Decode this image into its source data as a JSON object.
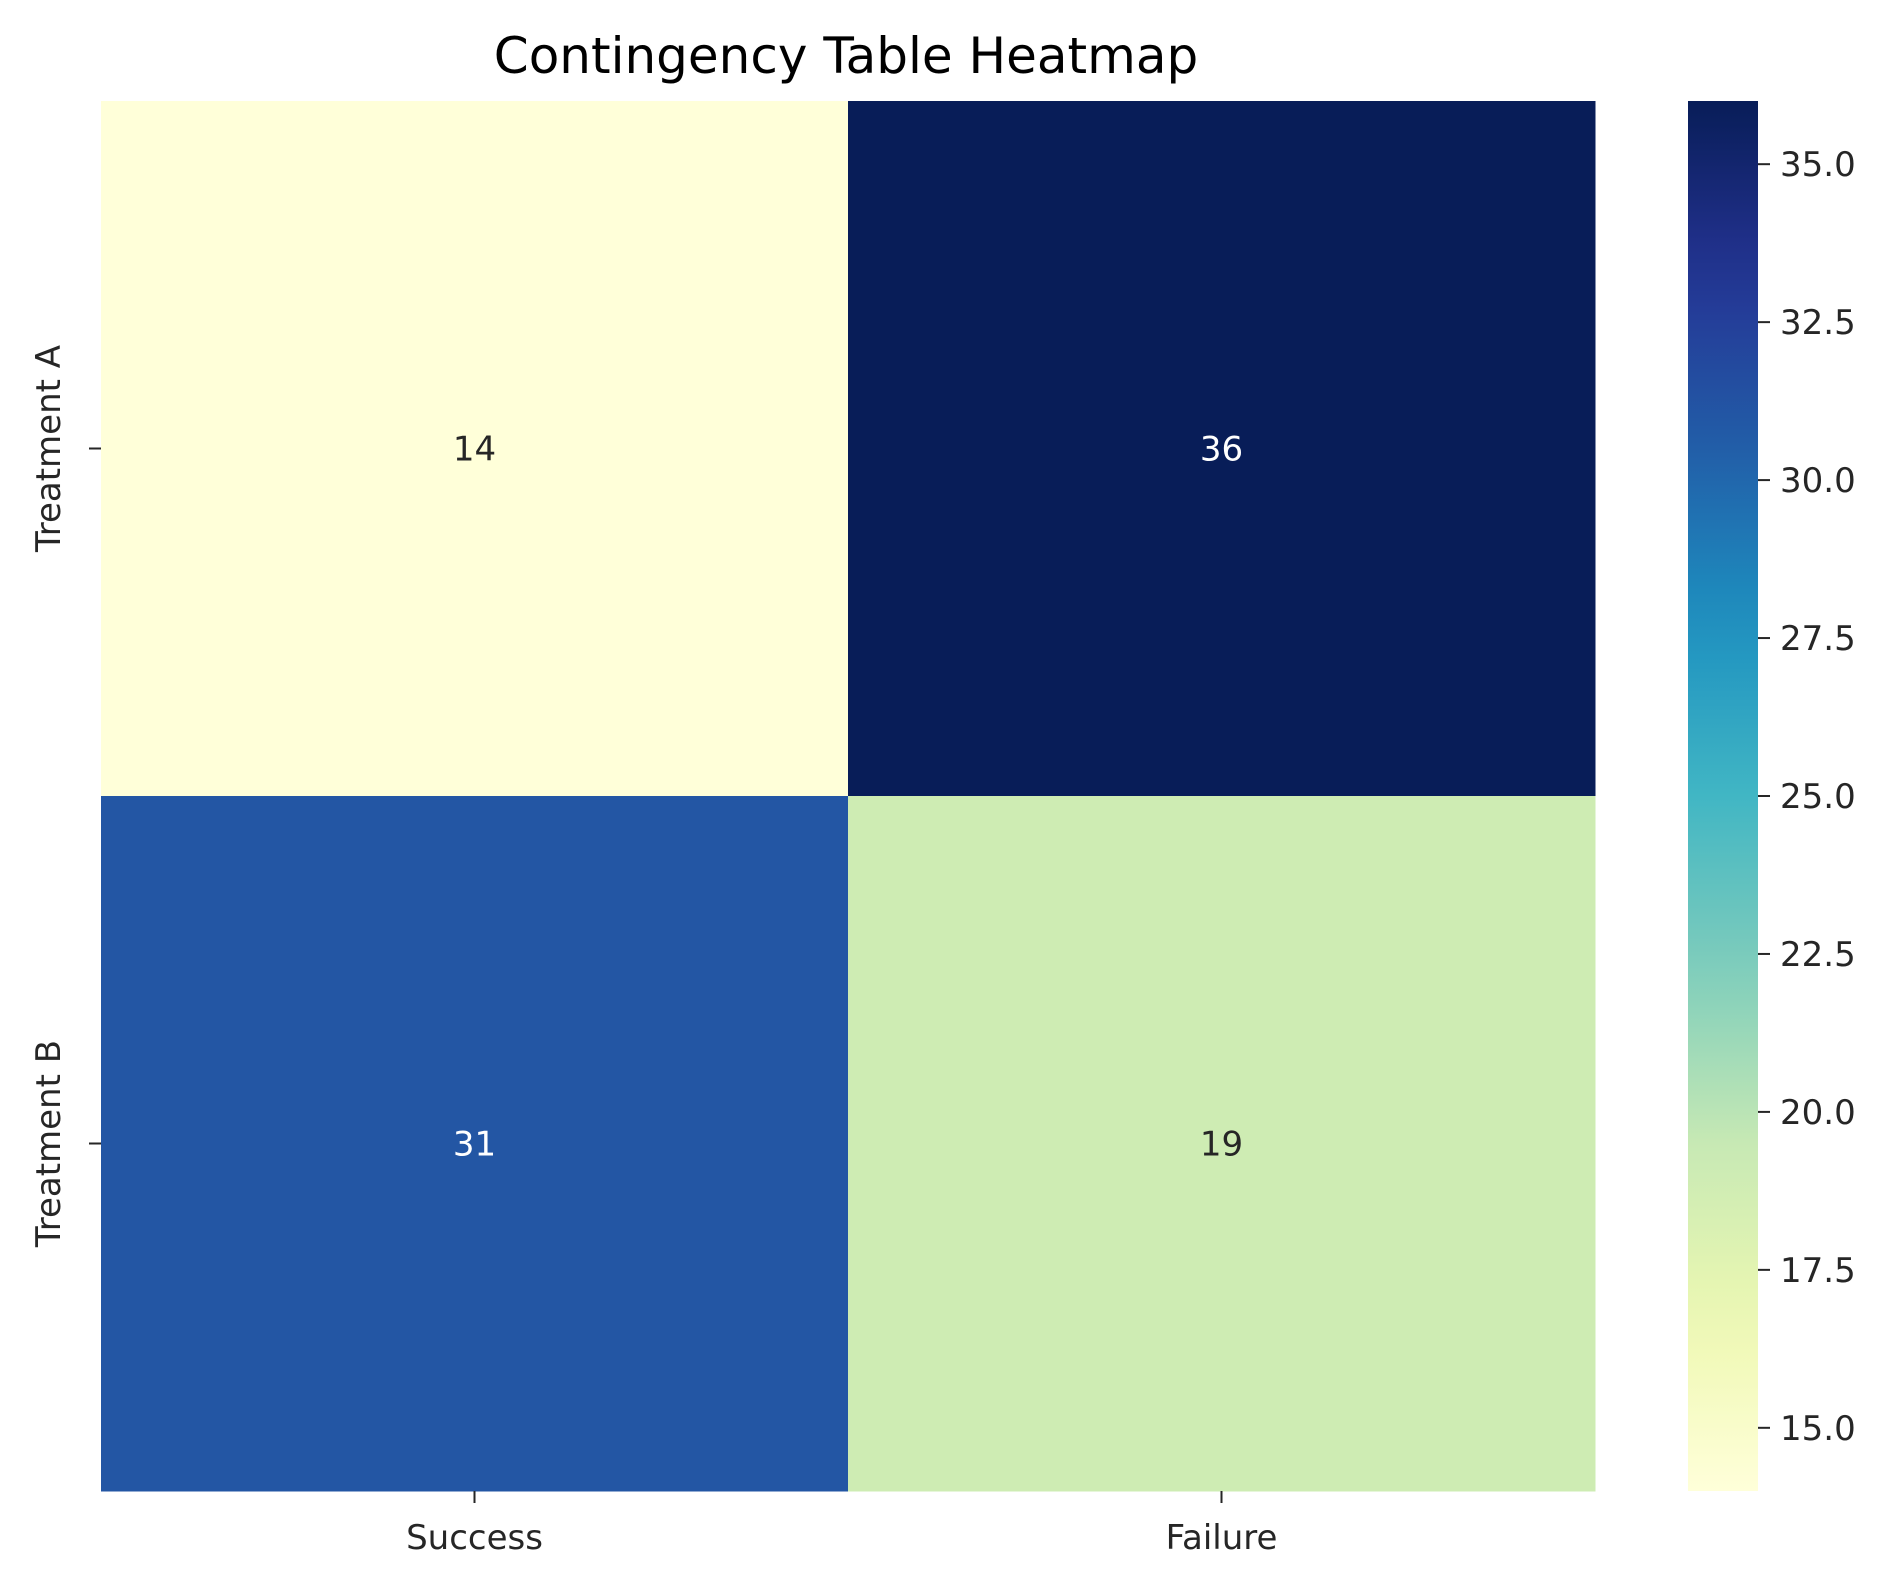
{
  "chart_data": {
    "type": "heatmap",
    "title": "Contingency Table Heatmap",
    "xlabel": "",
    "ylabel": "",
    "x_categories": [
      "Success",
      "Failure"
    ],
    "y_categories": [
      "Treatment A",
      "Treatment B"
    ],
    "values": [
      [
        14,
        36
      ],
      [
        31,
        19
      ]
    ],
    "annotations": [
      [
        "14",
        "36"
      ],
      [
        "31",
        "19"
      ]
    ],
    "colormap": "YlGnBu",
    "colorbar": {
      "range": [
        14,
        36
      ],
      "ticks": [
        15.0,
        17.5,
        20.0,
        22.5,
        25.0,
        27.5,
        30.0,
        32.5,
        35.0
      ],
      "tick_labels": [
        "15.0",
        "17.5",
        "20.0",
        "22.5",
        "25.0",
        "27.5",
        "30.0",
        "32.5",
        "35.0"
      ]
    },
    "grid": false,
    "colors": {
      "low": "#ffffd9",
      "high": "#081d58",
      "text_dark": "#262626",
      "text_light": "#ffffff"
    }
  }
}
